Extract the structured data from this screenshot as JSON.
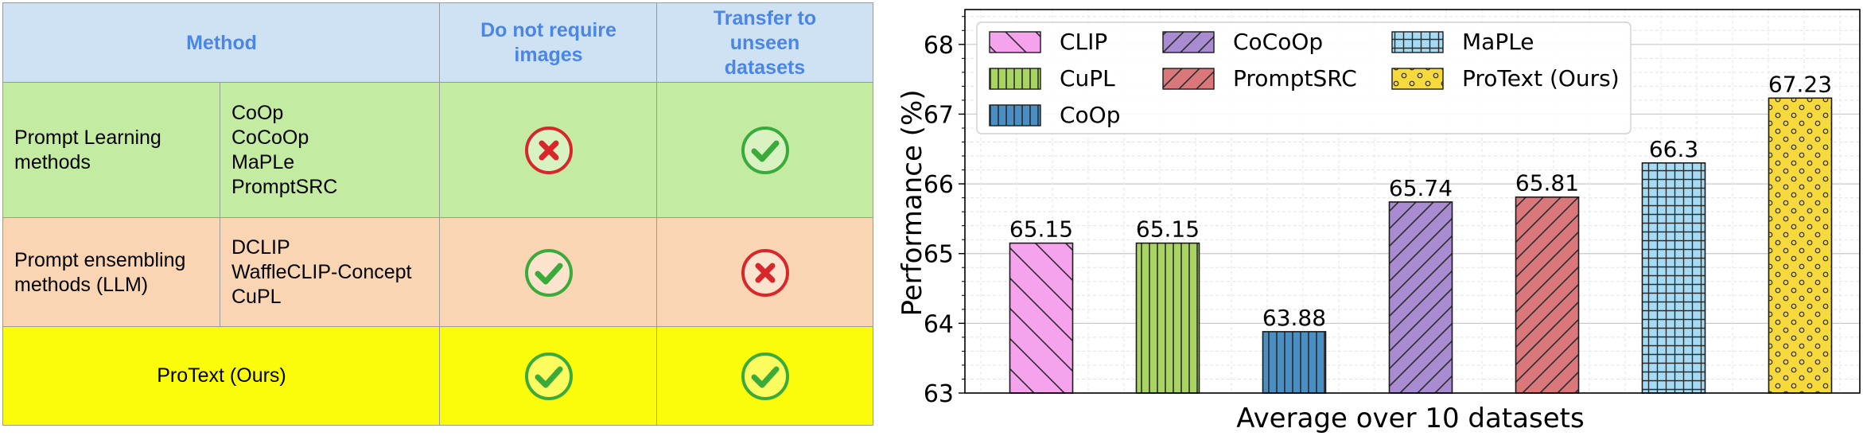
{
  "table": {
    "headers": {
      "method": "Method",
      "no_images": "Do not require images",
      "transfer": "Transfer to unseen datasets"
    },
    "rows": [
      {
        "category": "Prompt Learning methods",
        "methods": [
          "CoOp",
          "CoCoOp",
          "MaPLe",
          "PromptSRC"
        ],
        "no_images": "cross",
        "transfer": "check",
        "bg": "#c3eca2"
      },
      {
        "category": "Prompt ensembling methods (LLM)",
        "methods": [
          "DCLIP",
          "WaffleCLIP-Concept",
          "CuPL"
        ],
        "no_images": "check",
        "transfer": "cross",
        "bg": "#fad5b4"
      },
      {
        "category": "ProText (Ours)",
        "methods": [],
        "no_images": "check",
        "transfer": "check",
        "bg": "#fbfb0c"
      }
    ],
    "colors": {
      "header_bg": "#cfe2f3",
      "header_text": "#4a86e8",
      "check": "#3aab3a",
      "cross": "#d9262b"
    }
  },
  "chart_data": {
    "type": "bar",
    "categories": [
      "CLIP",
      "CuPL",
      "CoOp",
      "CoCoOp",
      "PromptSRC",
      "MaPLe",
      "ProText (Ours)"
    ],
    "values": [
      65.15,
      65.15,
      63.88,
      65.74,
      65.81,
      66.3,
      67.23
    ],
    "value_labels": [
      "65.15",
      "65.15",
      "63.88",
      "65.74",
      "65.81",
      "66.3",
      "67.23"
    ],
    "colors": [
      "#f6a3ee",
      "#a7d463",
      "#4a8fc4",
      "#a98bd2",
      "#d9777a",
      "#a5dbf5",
      "#f6d93c"
    ],
    "hatches": [
      "backslash",
      "vertical",
      "vertical",
      "slash",
      "slash",
      "grid",
      "dots"
    ],
    "xlabel": "Average over 10 datasets",
    "ylabel": "Performance (%)",
    "ylim": [
      63,
      68.5
    ],
    "yticks": [
      63,
      64,
      65,
      66,
      67,
      68
    ],
    "grid": true,
    "legend_position": "top-left"
  }
}
